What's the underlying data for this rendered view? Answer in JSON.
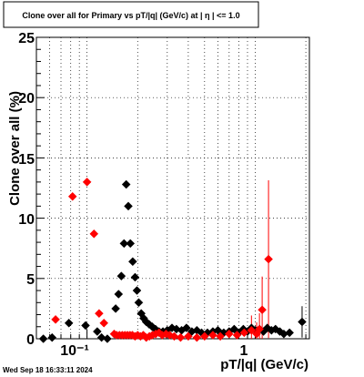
{
  "chart_data": {
    "type": "scatter",
    "title": "Clone  over all for Primary vs pT/|q| (GeV/c) at |  η  | <= 1.0",
    "xlabel": "pT/|q| (GeV/c)",
    "ylabel": "Clone  over all (%)",
    "x_scale": "log",
    "xlim": [
      0.05,
      2.1
    ],
    "ylim": [
      0,
      25
    ],
    "grid": true,
    "x_tick_labels": [
      {
        "value": 0.1,
        "label": "10⁻¹"
      },
      {
        "value": 1,
        "label": "1"
      }
    ],
    "y_tick_labels": [
      "0",
      "5",
      "10",
      "15",
      "20",
      "25"
    ],
    "series": [
      {
        "color": "#000000",
        "marker": "diamond",
        "points": [
          {
            "x": 0.055,
            "y": 0.0
          },
          {
            "x": 0.062,
            "y": 0.1
          },
          {
            "x": 0.078,
            "y": 1.3
          },
          {
            "x": 0.098,
            "y": 1.1
          },
          {
            "x": 0.115,
            "y": 0.6
          },
          {
            "x": 0.122,
            "y": 0.1
          },
          {
            "x": 0.132,
            "y": 0.0
          },
          {
            "x": 0.148,
            "y": 2.5
          },
          {
            "x": 0.154,
            "y": 3.7
          },
          {
            "x": 0.16,
            "y": 5.2
          },
          {
            "x": 0.166,
            "y": 7.9
          },
          {
            "x": 0.171,
            "y": 12.8
          },
          {
            "x": 0.176,
            "y": 11.0
          },
          {
            "x": 0.181,
            "y": 7.9
          },
          {
            "x": 0.187,
            "y": 6.4
          },
          {
            "x": 0.193,
            "y": 5.1
          },
          {
            "x": 0.198,
            "y": 4.0
          },
          {
            "x": 0.203,
            "y": 3.0
          },
          {
            "x": 0.21,
            "y": 2.1
          },
          {
            "x": 0.217,
            "y": 1.7
          },
          {
            "x": 0.225,
            "y": 1.4
          },
          {
            "x": 0.234,
            "y": 1.2
          },
          {
            "x": 0.244,
            "y": 1.0
          },
          {
            "x": 0.255,
            "y": 0.8
          },
          {
            "x": 0.268,
            "y": 0.6
          },
          {
            "x": 0.283,
            "y": 0.6
          },
          {
            "x": 0.3,
            "y": 0.7
          },
          {
            "x": 0.32,
            "y": 0.9
          },
          {
            "x": 0.34,
            "y": 0.8
          },
          {
            "x": 0.365,
            "y": 0.7
          },
          {
            "x": 0.39,
            "y": 0.9
          },
          {
            "x": 0.42,
            "y": 0.6
          },
          {
            "x": 0.45,
            "y": 0.7
          },
          {
            "x": 0.48,
            "y": 0.5
          },
          {
            "x": 0.52,
            "y": 0.5
          },
          {
            "x": 0.56,
            "y": 0.6
          },
          {
            "x": 0.6,
            "y": 0.7
          },
          {
            "x": 0.65,
            "y": 0.5
          },
          {
            "x": 0.7,
            "y": 0.6
          },
          {
            "x": 0.75,
            "y": 0.8
          },
          {
            "x": 0.8,
            "y": 0.5
          },
          {
            "x": 0.85,
            "y": 0.8
          },
          {
            "x": 0.9,
            "y": 0.6
          },
          {
            "x": 0.95,
            "y": 0.9
          },
          {
            "x": 1.0,
            "y": 0.7
          },
          {
            "x": 1.06,
            "y": 0.8
          },
          {
            "x": 1.12,
            "y": 0.6
          },
          {
            "x": 1.18,
            "y": 0.9
          },
          {
            "x": 1.25,
            "y": 0.7
          },
          {
            "x": 1.32,
            "y": 0.8
          },
          {
            "x": 1.4,
            "y": 0.6
          },
          {
            "x": 1.48,
            "y": 0.4
          },
          {
            "x": 1.6,
            "y": 0.5
          },
          {
            "x": 1.9,
            "y": 1.4
          }
        ]
      },
      {
        "color": "#ff0000",
        "marker": "diamond",
        "points": [
          {
            "x": 0.065,
            "y": 1.6
          },
          {
            "x": 0.082,
            "y": 11.8
          },
          {
            "x": 0.1,
            "y": 13.0
          },
          {
            "x": 0.11,
            "y": 8.7
          },
          {
            "x": 0.118,
            "y": 2.1
          },
          {
            "x": 0.126,
            "y": 1.3
          },
          {
            "x": 0.145,
            "y": 0.4
          },
          {
            "x": 0.15,
            "y": 0.3
          },
          {
            "x": 0.156,
            "y": 0.3
          },
          {
            "x": 0.162,
            "y": 0.3
          },
          {
            "x": 0.168,
            "y": 0.3
          },
          {
            "x": 0.174,
            "y": 0.3
          },
          {
            "x": 0.18,
            "y": 0.3
          },
          {
            "x": 0.186,
            "y": 0.3
          },
          {
            "x": 0.193,
            "y": 0.2
          },
          {
            "x": 0.2,
            "y": 0.3
          },
          {
            "x": 0.208,
            "y": 0.2
          },
          {
            "x": 0.216,
            "y": 0.3
          },
          {
            "x": 0.225,
            "y": 0.1
          },
          {
            "x": 0.235,
            "y": 0.2
          },
          {
            "x": 0.245,
            "y": 0.3
          },
          {
            "x": 0.256,
            "y": 0.4
          },
          {
            "x": 0.268,
            "y": 0.5
          },
          {
            "x": 0.28,
            "y": 0.3
          },
          {
            "x": 0.295,
            "y": 0.4
          },
          {
            "x": 0.31,
            "y": 0.3
          },
          {
            "x": 0.33,
            "y": 0.2
          },
          {
            "x": 0.36,
            "y": 0.1
          },
          {
            "x": 0.4,
            "y": 0.2
          },
          {
            "x": 0.45,
            "y": 0.1
          },
          {
            "x": 0.5,
            "y": 0.2
          },
          {
            "x": 0.56,
            "y": 0.3
          },
          {
            "x": 0.62,
            "y": 0.2
          },
          {
            "x": 0.7,
            "y": 0.4
          },
          {
            "x": 0.78,
            "y": 0.3
          },
          {
            "x": 0.86,
            "y": 0.5
          },
          {
            "x": 0.95,
            "y": 0.7
          },
          {
            "x": 1.02,
            "y": 0.4
          },
          {
            "x": 1.06,
            "y": 0.8
          },
          {
            "x": 1.1,
            "y": 2.4
          },
          {
            "x": 1.2,
            "y": 6.6
          }
        ]
      }
    ]
  },
  "footer": {
    "timestamp": "Wed Sep 18 16:33:11 2024"
  }
}
